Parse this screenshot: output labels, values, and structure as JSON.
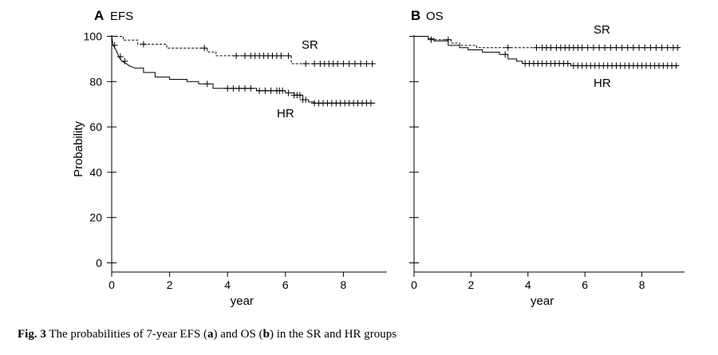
{
  "caption": {
    "label": "Fig. 3",
    "t1": "The probabilities of 7-year EFS (",
    "a": "a",
    "t2": ") and OS (",
    "b": "b",
    "t3": ") in the SR and HR groups"
  },
  "chart_data": [
    {
      "type": "line",
      "panel_letter": "A",
      "title": "EFS",
      "xlabel": "year",
      "ylabel": "Probability",
      "xlim": [
        0,
        9.5
      ],
      "ylim": [
        -4,
        104
      ],
      "xticks": [
        0,
        2,
        4,
        6,
        8
      ],
      "yticks": [
        0,
        20,
        40,
        60,
        80,
        100
      ],
      "grid": false,
      "series": [
        {
          "name": "SR",
          "dash": true,
          "steps": [
            [
              0,
              100
            ],
            [
              0.4,
              100
            ],
            [
              0.4,
              98.3
            ],
            [
              0.9,
              98.3
            ],
            [
              0.9,
              96.5
            ],
            [
              1.9,
              96.5
            ],
            [
              1.9,
              94.8
            ],
            [
              3.3,
              94.8
            ],
            [
              3.3,
              93.1
            ],
            [
              3.6,
              93.1
            ],
            [
              3.6,
              91.4
            ],
            [
              6.2,
              91.4
            ],
            [
              6.2,
              87.9
            ],
            [
              9.1,
              87.9
            ]
          ],
          "censor": [
            1.1,
            3.2,
            4.3,
            4.6,
            4.8,
            4.95,
            5.1,
            5.25,
            5.4,
            5.55,
            5.7,
            5.85,
            6.1,
            6.7,
            7.0,
            7.2,
            7.35,
            7.5,
            7.65,
            7.8,
            8.0,
            8.2,
            8.4,
            8.6,
            8.8,
            9.0
          ]
        },
        {
          "name": "HR",
          "dash": false,
          "steps": [
            [
              0,
              100
            ],
            [
              0.05,
              96
            ],
            [
              0.15,
              94
            ],
            [
              0.25,
              91
            ],
            [
              0.35,
              89
            ],
            [
              0.5,
              88
            ],
            [
              0.6,
              87
            ],
            [
              0.8,
              86
            ],
            [
              1.1,
              86
            ],
            [
              1.1,
              84
            ],
            [
              1.5,
              84
            ],
            [
              1.5,
              82
            ],
            [
              2.0,
              82
            ],
            [
              2.0,
              81
            ],
            [
              2.6,
              81
            ],
            [
              2.6,
              80
            ],
            [
              3.0,
              80
            ],
            [
              3.0,
              79
            ],
            [
              3.5,
              79
            ],
            [
              3.5,
              77
            ],
            [
              5.0,
              77
            ],
            [
              5.0,
              76
            ],
            [
              6.0,
              76
            ],
            [
              6.0,
              75
            ],
            [
              6.3,
              75
            ],
            [
              6.3,
              74
            ],
            [
              6.6,
              74
            ],
            [
              6.6,
              72
            ],
            [
              6.8,
              72
            ],
            [
              6.8,
              71
            ],
            [
              7.0,
              71
            ],
            [
              7.0,
              70.5
            ],
            [
              9.1,
              70.5
            ]
          ],
          "censor": [
            0.1,
            0.3,
            0.45,
            3.3,
            4.0,
            4.2,
            4.4,
            4.6,
            4.8,
            5.1,
            5.3,
            5.5,
            5.7,
            5.8,
            5.9,
            6.1,
            6.3,
            6.4,
            6.5,
            6.6,
            6.7,
            7.0,
            7.15,
            7.3,
            7.45,
            7.6,
            7.75,
            7.9,
            8.05,
            8.2,
            8.35,
            8.5,
            8.65,
            8.8,
            8.95
          ]
        }
      ]
    },
    {
      "type": "line",
      "panel_letter": "B",
      "title": "OS",
      "xlabel": "year",
      "ylabel": "",
      "xlim": [
        0,
        9.5
      ],
      "ylim": [
        -4,
        104
      ],
      "xticks": [
        0,
        2,
        4,
        6,
        8
      ],
      "yticks": [
        0,
        20,
        40,
        60,
        80,
        100
      ],
      "grid": false,
      "series": [
        {
          "name": "SR",
          "dash": true,
          "steps": [
            [
              0,
              100
            ],
            [
              0.5,
              100
            ],
            [
              0.5,
              98.5
            ],
            [
              1.3,
              98.5
            ],
            [
              1.3,
              97
            ],
            [
              1.6,
              97
            ],
            [
              1.6,
              96
            ],
            [
              2.2,
              96
            ],
            [
              2.2,
              95
            ],
            [
              9.3,
              95
            ]
          ],
          "censor": [
            0.6,
            1.2,
            3.3,
            4.3,
            4.5,
            4.65,
            4.8,
            5.0,
            5.15,
            5.3,
            5.45,
            5.6,
            5.75,
            5.9,
            6.1,
            6.3,
            6.5,
            6.7,
            6.9,
            7.1,
            7.3,
            7.5,
            7.7,
            7.9,
            8.1,
            8.3,
            8.5,
            8.7,
            8.9,
            9.1,
            9.25
          ]
        },
        {
          "name": "HR",
          "dash": false,
          "steps": [
            [
              0,
              100
            ],
            [
              0.5,
              100
            ],
            [
              0.5,
              99
            ],
            [
              0.7,
              99
            ],
            [
              0.7,
              98
            ],
            [
              1.2,
              98
            ],
            [
              1.2,
              96
            ],
            [
              1.6,
              96
            ],
            [
              1.6,
              95
            ],
            [
              1.9,
              95
            ],
            [
              1.9,
              94
            ],
            [
              2.4,
              94
            ],
            [
              2.4,
              93
            ],
            [
              3.0,
              93
            ],
            [
              3.0,
              92
            ],
            [
              3.3,
              92
            ],
            [
              3.3,
              90
            ],
            [
              3.6,
              90
            ],
            [
              3.6,
              89
            ],
            [
              3.8,
              89
            ],
            [
              3.8,
              88
            ],
            [
              5.5,
              88
            ],
            [
              5.5,
              87
            ],
            [
              9.3,
              87
            ]
          ],
          "censor": [
            3.2,
            3.9,
            4.05,
            4.2,
            4.35,
            4.5,
            4.65,
            4.8,
            4.95,
            5.1,
            5.25,
            5.4,
            5.6,
            5.75,
            5.9,
            6.05,
            6.2,
            6.35,
            6.5,
            6.65,
            6.8,
            6.95,
            7.1,
            7.25,
            7.4,
            7.55,
            7.7,
            7.85,
            8.0,
            8.15,
            8.3,
            8.45,
            8.6,
            8.75,
            8.9,
            9.05,
            9.2
          ]
        }
      ]
    }
  ]
}
